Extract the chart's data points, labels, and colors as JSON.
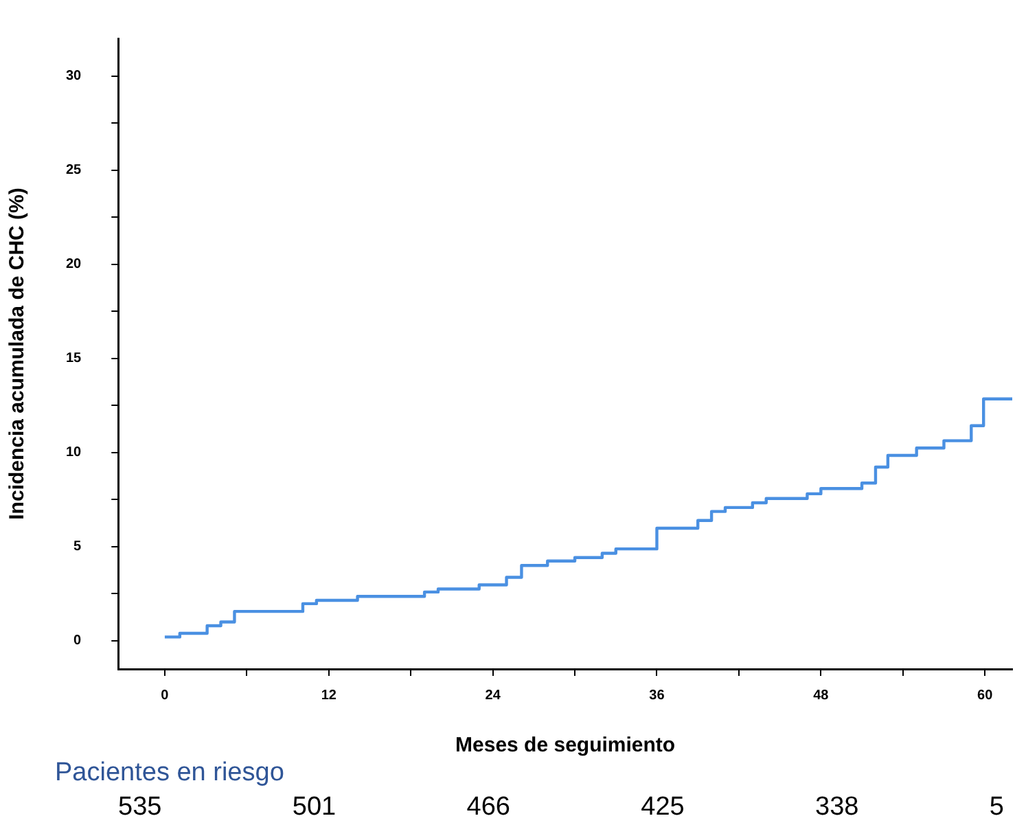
{
  "chart_data": {
    "type": "step",
    "xlabel": "Meses de seguimiento",
    "ylabel": "Incidencia acumulada de CHC (%)",
    "x": [
      0,
      1.1,
      3.1,
      4.1,
      5.1,
      10.1,
      11.1,
      14.1,
      19,
      20,
      23,
      25,
      26.1,
      28,
      30,
      32,
      33,
      36,
      39,
      40,
      41,
      43,
      44,
      47,
      48,
      51,
      52,
      52.9,
      55,
      57,
      59,
      59.9,
      62
    ],
    "series": [
      {
        "color": "#4a90e2",
        "values": [
          0.2,
          0.4,
          0.8,
          1.0,
          1.56,
          1.97,
          2.15,
          2.36,
          2.59,
          2.75,
          2.97,
          3.37,
          4.0,
          4.24,
          4.42,
          4.65,
          4.88,
          5.98,
          6.39,
          6.87,
          7.08,
          7.33,
          7.56,
          7.81,
          8.09,
          8.38,
          9.23,
          9.85,
          10.24,
          10.63,
          11.43,
          12.85,
          12.85
        ]
      }
    ],
    "xlim": [
      -3.4,
      62
    ],
    "ylim": [
      -1.5,
      32
    ],
    "xticks": [
      0,
      {
        "value": 6,
        "label": null
      },
      12,
      {
        "value": 18,
        "label": null
      },
      24,
      {
        "value": 30,
        "label": null
      },
      36,
      {
        "value": 42,
        "label": null
      },
      48,
      {
        "value": 54,
        "label": null
      },
      60
    ],
    "yticks": [
      0,
      {
        "value": 2.5,
        "label": null
      },
      5,
      {
        "value": 7.5,
        "label": null
      },
      10,
      {
        "value": 12.5,
        "label": null
      },
      15,
      {
        "value": 17.5,
        "label": null
      },
      20,
      {
        "value": 22.5,
        "label": null
      },
      25,
      {
        "value": 27.5,
        "label": null
      },
      30
    ],
    "grid": false,
    "legend": false,
    "marker": "none",
    "line_style": "solid",
    "annotations": [
      "Pacientes en riesgo",
      "535",
      "501",
      "466",
      "425",
      "338",
      "5"
    ]
  }
}
